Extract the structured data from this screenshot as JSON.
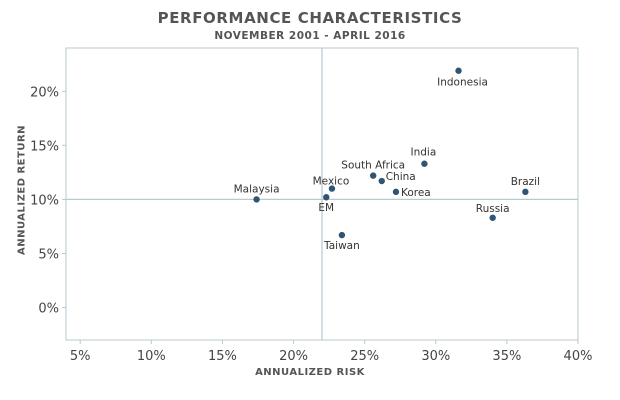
{
  "chart_data": {
    "type": "scatter",
    "title": "PERFORMANCE CHARACTERISTICS",
    "subtitle": "NOVEMBER 2001 - APRIL 2016",
    "xlabel": "ANNUALIZED RISK",
    "ylabel": "ANNUALIZED RETURN",
    "xlim": [
      4,
      40
    ],
    "ylim": [
      -3,
      24
    ],
    "xticks": [
      "5%",
      "10%",
      "15%",
      "20%",
      "25%",
      "30%",
      "35%",
      "40%"
    ],
    "xtick_values": [
      5,
      10,
      15,
      20,
      25,
      30,
      35,
      40
    ],
    "yticks": [
      "0%",
      "5%",
      "10%",
      "15%",
      "20%"
    ],
    "ytick_values": [
      0,
      5,
      10,
      15,
      20
    ],
    "reference_lines": {
      "x": 22,
      "y": 10
    },
    "grid": false,
    "marker_color": "#2e5573",
    "line_color": "#b8c9cf",
    "points": [
      {
        "label": "Indonesia",
        "x": 31.6,
        "y": 21.9
      },
      {
        "label": "India",
        "x": 29.2,
        "y": 13.3
      },
      {
        "label": "South Africa",
        "x": 25.6,
        "y": 12.2
      },
      {
        "label": "China",
        "x": 26.2,
        "y": 11.7
      },
      {
        "label": "Korea",
        "x": 27.2,
        "y": 10.7
      },
      {
        "label": "Mexico",
        "x": 22.7,
        "y": 11.0
      },
      {
        "label": "EM",
        "x": 22.3,
        "y": 10.2
      },
      {
        "label": "Malaysia",
        "x": 17.4,
        "y": 10.0
      },
      {
        "label": "Brazil",
        "x": 36.3,
        "y": 10.7
      },
      {
        "label": "Russia",
        "x": 34.0,
        "y": 8.3
      },
      {
        "label": "Taiwan",
        "x": 23.4,
        "y": 6.7
      }
    ]
  }
}
